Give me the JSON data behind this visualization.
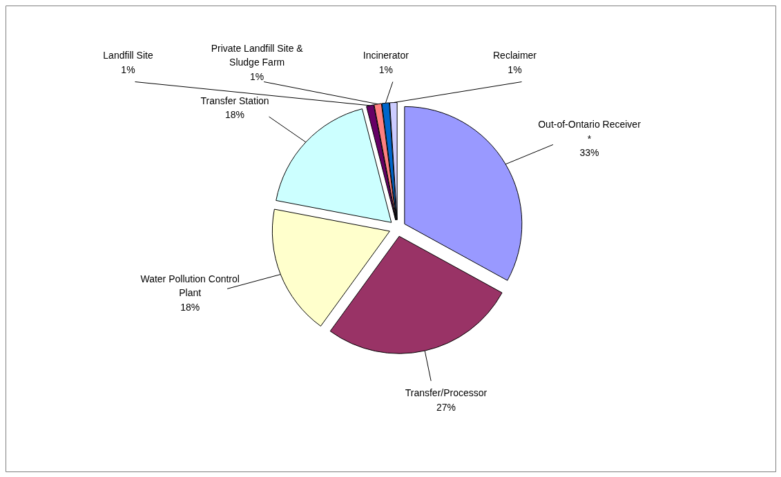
{
  "chart_data": {
    "type": "pie",
    "categories": [
      "Out-of-Ontario Receiver\n*",
      "Transfer/Processor",
      "Water Pollution Control\nPlant",
      "Transfer Station",
      "Landfill Site",
      "Private Landfill Site &\nSludge Farm",
      "Incinerator",
      "Reclaimer"
    ],
    "values": [
      33,
      27,
      18,
      18,
      1,
      1,
      1,
      1
    ],
    "value_labels": [
      "33%",
      "27%",
      "18%",
      "18%",
      "1%",
      "1%",
      "1%",
      "1%"
    ],
    "colors": [
      "#9999ff",
      "#993366",
      "#ffffcc",
      "#ccffff",
      "#660066",
      "#ff8080",
      "#0066cc",
      "#ccccff"
    ]
  }
}
